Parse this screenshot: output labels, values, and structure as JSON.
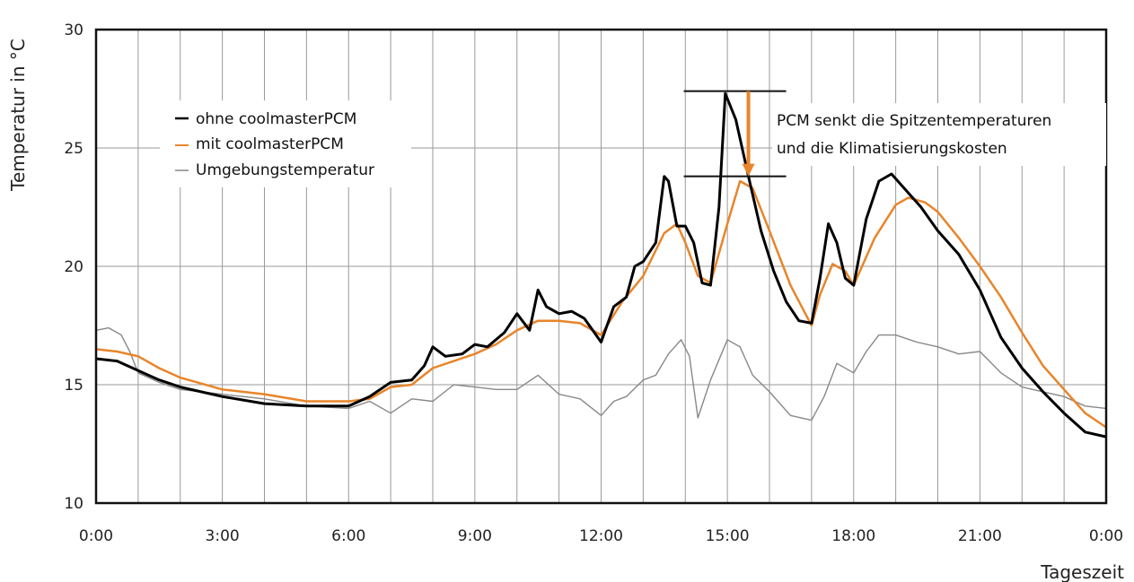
{
  "chart_data": {
    "type": "line",
    "title": "",
    "xlabel": "Tageszeit",
    "ylabel": "Temperatur in °C",
    "x_unit": "hours",
    "xlim": [
      0,
      24
    ],
    "ylim": [
      10,
      30
    ],
    "x_tick_labels": [
      "0:00",
      "3:00",
      "6:00",
      "9:00",
      "12:00",
      "15:00",
      "18:00",
      "21:00",
      "0:00"
    ],
    "y_ticks": [
      10,
      15,
      20,
      25,
      30
    ],
    "grid": true,
    "legend_position": "top-left",
    "series": [
      {
        "name": "ohne coolmasterPCM",
        "color": "#000000",
        "x": [
          0,
          0.5,
          1,
          1.5,
          2,
          3,
          4,
          5,
          6,
          6.5,
          7,
          7.5,
          7.8,
          8.0,
          8.3,
          8.7,
          9.0,
          9.3,
          9.7,
          10.0,
          10.3,
          10.5,
          10.7,
          11.0,
          11.3,
          11.6,
          12.0,
          12.3,
          12.6,
          12.8,
          13.0,
          13.3,
          13.5,
          13.6,
          13.8,
          14.0,
          14.2,
          14.4,
          14.6,
          14.8,
          14.95,
          15.2,
          15.5,
          15.8,
          16.1,
          16.4,
          16.7,
          17.0,
          17.2,
          17.4,
          17.6,
          17.8,
          18.0,
          18.3,
          18.6,
          18.9,
          19.2,
          19.6,
          20.0,
          20.5,
          21.0,
          21.5,
          22.0,
          22.5,
          23.0,
          23.5,
          24.0
        ],
        "y": [
          16.1,
          16.0,
          15.6,
          15.2,
          14.9,
          14.5,
          14.2,
          14.1,
          14.1,
          14.5,
          15.1,
          15.2,
          15.8,
          16.6,
          16.2,
          16.3,
          16.7,
          16.6,
          17.2,
          18.0,
          17.3,
          19.0,
          18.3,
          18.0,
          18.1,
          17.8,
          16.8,
          18.3,
          18.7,
          20.0,
          20.2,
          21.0,
          23.8,
          23.6,
          21.7,
          21.7,
          21.0,
          19.3,
          19.2,
          22.5,
          27.3,
          26.2,
          23.8,
          21.5,
          19.8,
          18.5,
          17.7,
          17.6,
          19.5,
          21.8,
          21.0,
          19.5,
          19.2,
          22.0,
          23.6,
          23.9,
          23.3,
          22.5,
          21.5,
          20.5,
          19.0,
          17.0,
          15.7,
          14.7,
          13.8,
          13.0,
          12.8
        ]
      },
      {
        "name": "mit coolmasterPCM",
        "color": "#e8852a",
        "x": [
          0,
          0.5,
          1,
          1.5,
          2,
          3,
          4,
          5,
          6,
          6.5,
          7,
          7.5,
          8.0,
          8.5,
          9.0,
          9.5,
          10.0,
          10.5,
          11.0,
          11.5,
          12.0,
          12.5,
          13.0,
          13.5,
          13.8,
          14.0,
          14.3,
          14.6,
          15.0,
          15.3,
          15.6,
          16.0,
          16.5,
          17.0,
          17.2,
          17.5,
          17.8,
          18.0,
          18.5,
          19.0,
          19.3,
          19.7,
          20.0,
          20.5,
          21.0,
          21.5,
          22.0,
          22.5,
          23.0,
          23.5,
          24.0
        ],
        "y": [
          16.5,
          16.4,
          16.2,
          15.7,
          15.3,
          14.8,
          14.6,
          14.3,
          14.3,
          14.4,
          14.9,
          15.0,
          15.7,
          16.0,
          16.3,
          16.7,
          17.3,
          17.7,
          17.7,
          17.6,
          17.1,
          18.5,
          19.6,
          21.4,
          21.8,
          21.0,
          19.6,
          19.3,
          21.8,
          23.6,
          23.3,
          21.5,
          19.2,
          17.5,
          18.8,
          20.1,
          19.8,
          19.2,
          21.2,
          22.6,
          22.9,
          22.7,
          22.3,
          21.2,
          20.0,
          18.7,
          17.2,
          15.8,
          14.8,
          13.8,
          13.2
        ]
      },
      {
        "name": "Umgebungstemperatur",
        "color": "#888888",
        "x": [
          0,
          0.3,
          0.6,
          0.8,
          1.0,
          1.5,
          2,
          3,
          4,
          5,
          6,
          6.5,
          7,
          7.5,
          8.0,
          8.5,
          9.0,
          9.5,
          10.0,
          10.5,
          11.0,
          11.5,
          12.0,
          12.3,
          12.6,
          13.0,
          13.3,
          13.6,
          13.9,
          14.1,
          14.3,
          14.6,
          15.0,
          15.3,
          15.6,
          16.0,
          16.5,
          17.0,
          17.3,
          17.6,
          18.0,
          18.3,
          18.6,
          19.0,
          19.5,
          20.0,
          20.5,
          21.0,
          21.5,
          22.0,
          22.5,
          23.0,
          23.5,
          24.0
        ],
        "y": [
          17.3,
          17.4,
          17.1,
          16.4,
          15.5,
          15.1,
          14.8,
          14.6,
          14.4,
          14.1,
          14.0,
          14.3,
          13.8,
          14.4,
          14.3,
          15.0,
          14.9,
          14.8,
          14.8,
          15.4,
          14.6,
          14.4,
          13.7,
          14.3,
          14.5,
          15.2,
          15.4,
          16.3,
          16.9,
          16.2,
          13.6,
          15.2,
          16.9,
          16.6,
          15.4,
          14.7,
          13.7,
          13.5,
          14.5,
          15.9,
          15.5,
          16.4,
          17.1,
          17.1,
          16.8,
          16.6,
          16.3,
          16.4,
          15.5,
          14.9,
          14.7,
          14.5,
          14.1,
          14.0
        ]
      }
    ],
    "annotation": {
      "line1": "PCM senkt die Spitzentemperaturen",
      "line2": "und die Klimatisierungskosten",
      "x_hours": 15.5,
      "y_top": 27.4,
      "y_bottom": 23.8,
      "arrow_color": "#e8852a"
    }
  }
}
